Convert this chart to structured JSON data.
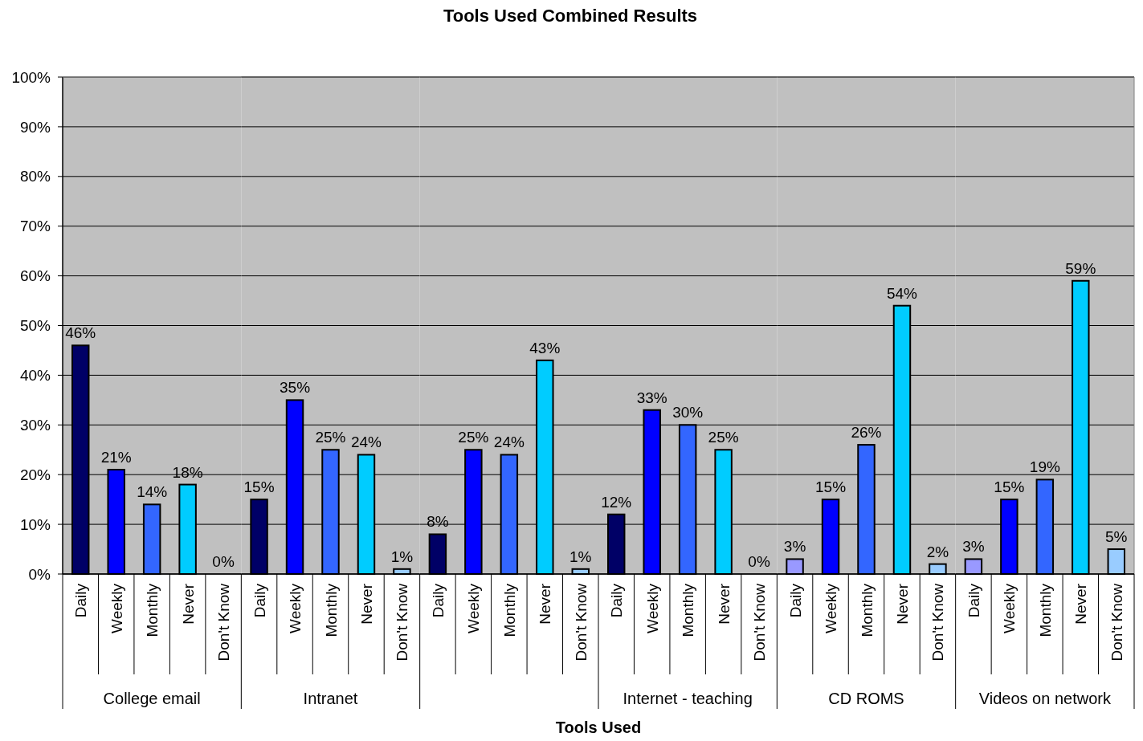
{
  "chart_data": [
    {
      "type": "bar",
      "xlabel": "College email",
      "categories": [
        "Daily",
        "Weekly",
        "Monthly",
        "Never",
        "Don't Know"
      ],
      "values": [
        46,
        21,
        14,
        18,
        0
      ],
      "value_labels": [
        "46%",
        "21%",
        "14%",
        "18%",
        "0%"
      ],
      "colors": [
        "#000066",
        "#0000ff",
        "#3366ff",
        "#00ccff",
        "#99ccff"
      ],
      "ylim": [
        0,
        100
      ],
      "yticks": [
        {
          "value": 0,
          "label": "0%"
        },
        {
          "value": 10,
          "label": "10%"
        },
        {
          "value": 20,
          "label": "20%"
        },
        {
          "value": 30,
          "label": "30%"
        },
        {
          "value": 40,
          "label": "40%"
        },
        {
          "value": 50,
          "label": "50%"
        },
        {
          "value": 60,
          "label": "60%"
        },
        {
          "value": 70,
          "label": "70%"
        },
        {
          "value": 80,
          "label": "80%"
        },
        {
          "value": 90,
          "label": "90%"
        },
        {
          "value": 100,
          "label": "100%"
        }
      ],
      "grid": "y"
    },
    {
      "type": "bar",
      "xlabel": "Intranet",
      "categories": [
        "Daily",
        "Weekly",
        "Monthly",
        "Never",
        "Don't Know"
      ],
      "values": [
        15,
        35,
        25,
        24,
        1
      ],
      "value_labels": [
        "15%",
        "35%",
        "25%",
        "24%",
        "1%"
      ],
      "colors": [
        "#000066",
        "#0000ff",
        "#3366ff",
        "#00ccff",
        "#99ccff"
      ],
      "ylim": [
        0,
        100
      ],
      "yticks": [
        0,
        10,
        20,
        30,
        40,
        50,
        60,
        70,
        80,
        90,
        100
      ],
      "grid": "y",
      "tick_labels": "x"
    },
    {
      "type": "bar",
      "title": "Tools Used Combined Results",
      "categories": [
        "Daily",
        "Weekly",
        "Monthly",
        "Never",
        "Don't Know"
      ],
      "values": [
        8,
        25,
        24,
        43,
        1
      ],
      "value_labels": [
        "8%",
        "25%",
        "24%",
        "43%",
        "1%"
      ],
      "colors": [
        "#000066",
        "#0000ff",
        "#3366ff",
        "#00ccff",
        "#99ccff"
      ],
      "ylim": [
        0,
        100
      ],
      "yticks": [
        0,
        10,
        20,
        30,
        40,
        50,
        60,
        70,
        80,
        90,
        100
      ],
      "grid": "y",
      "tick_labels": "x"
    },
    {
      "type": "bar",
      "xlabel": "Internet - teaching",
      "annotations": [
        "Tools Used"
      ],
      "categories": [
        "Daily",
        "Weekly",
        "Monthly",
        "Never",
        "Don't Know"
      ],
      "values": [
        12,
        33,
        30,
        25,
        0
      ],
      "value_labels": [
        "12%",
        "33%",
        "30%",
        "25%",
        "0%"
      ],
      "colors": [
        "#000066",
        "#0000ff",
        "#3366ff",
        "#00ccff",
        "#99ccff"
      ],
      "ylim": [
        0,
        100
      ],
      "yticks": [
        0,
        10,
        20,
        30,
        40,
        50,
        60,
        70,
        80,
        90,
        100
      ],
      "grid": "y",
      "tick_labels": "x"
    },
    {
      "type": "bar",
      "xlabel": "CD ROMS",
      "categories": [
        "Daily",
        "Weekly",
        "Monthly",
        "Never",
        "Don't Know"
      ],
      "values": [
        3,
        15,
        26,
        54,
        2
      ],
      "value_labels": [
        "3%",
        "15%",
        "26%",
        "54%",
        "2%"
      ],
      "colors": [
        "#9999ff",
        "#0000ff",
        "#3366ff",
        "#00ccff",
        "#99ccff"
      ],
      "ylim": [
        0,
        100
      ],
      "yticks": [
        0,
        10,
        20,
        30,
        40,
        50,
        60,
        70,
        80,
        90,
        100
      ],
      "grid": "y",
      "tick_labels": "x"
    },
    {
      "type": "bar",
      "xlabel": "Videos on network",
      "categories": [
        "Daily",
        "Weekly",
        "Monthly",
        "Never",
        "Don't Know"
      ],
      "values": [
        3,
        15,
        19,
        59,
        5
      ],
      "value_labels": [
        "3%",
        "15%",
        "19%",
        "59%",
        "5%"
      ],
      "colors": [
        "#9999ff",
        "#0000ff",
        "#3366ff",
        "#00ccff",
        "#99ccff"
      ],
      "ylim": [
        0,
        100
      ],
      "yticks": [
        0,
        10,
        20,
        30,
        40,
        50,
        60,
        70,
        80,
        90,
        100
      ],
      "grid": "y",
      "tick_labels": "x"
    }
  ]
}
